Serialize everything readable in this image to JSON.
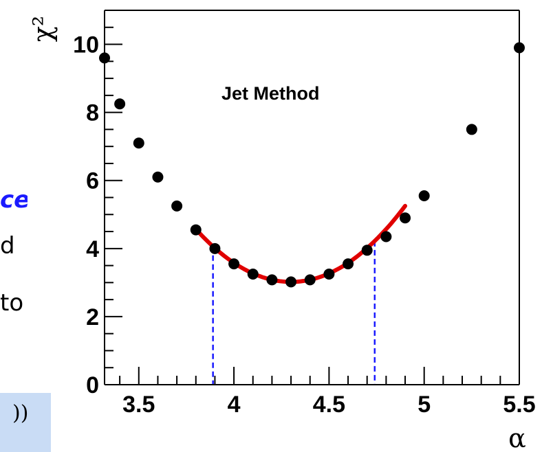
{
  "margin_text": {
    "highlight_fragment": "ce",
    "line_fragment_1": "d",
    "line_fragment_2": "to",
    "formula_fragment": "))"
  },
  "chart_data": {
    "type": "scatter",
    "title": "",
    "annotation": "Jet Method",
    "xlabel": "α",
    "ylabel": "χ²",
    "xlim": [
      3.32,
      5.5
    ],
    "ylim": [
      0,
      11
    ],
    "x_ticks": [
      3.5,
      4,
      4.5,
      5,
      5.5
    ],
    "x_tick_labels": [
      "3.5",
      "4",
      "4.5",
      "5",
      "5.5"
    ],
    "y_ticks": [
      0,
      2,
      4,
      6,
      8,
      10
    ],
    "y_tick_labels": [
      "0",
      "2",
      "4",
      "6",
      "8",
      "10"
    ],
    "grid": false,
    "series": [
      {
        "type": "scatter",
        "color": "#000000",
        "x": [
          3.32,
          3.4,
          3.5,
          3.6,
          3.7,
          3.8,
          3.9,
          4.0,
          4.1,
          4.2,
          4.3,
          4.4,
          4.5,
          4.6,
          4.7,
          4.8,
          4.9,
          5.0,
          5.25,
          5.5
        ],
        "y": [
          9.6,
          8.25,
          7.1,
          6.1,
          5.25,
          4.55,
          4.0,
          3.55,
          3.25,
          3.08,
          3.02,
          3.08,
          3.25,
          3.55,
          3.95,
          4.35,
          4.9,
          5.55,
          7.5,
          9.9
        ]
      },
      {
        "type": "parabola-fit",
        "color": "#e00000",
        "x_range": [
          3.8,
          4.9
        ],
        "vertex": [
          4.3,
          3.02
        ],
        "curvature": 6.2
      }
    ],
    "interval_lines": {
      "color": "#1a1aff",
      "x": [
        3.89,
        4.74
      ]
    }
  }
}
